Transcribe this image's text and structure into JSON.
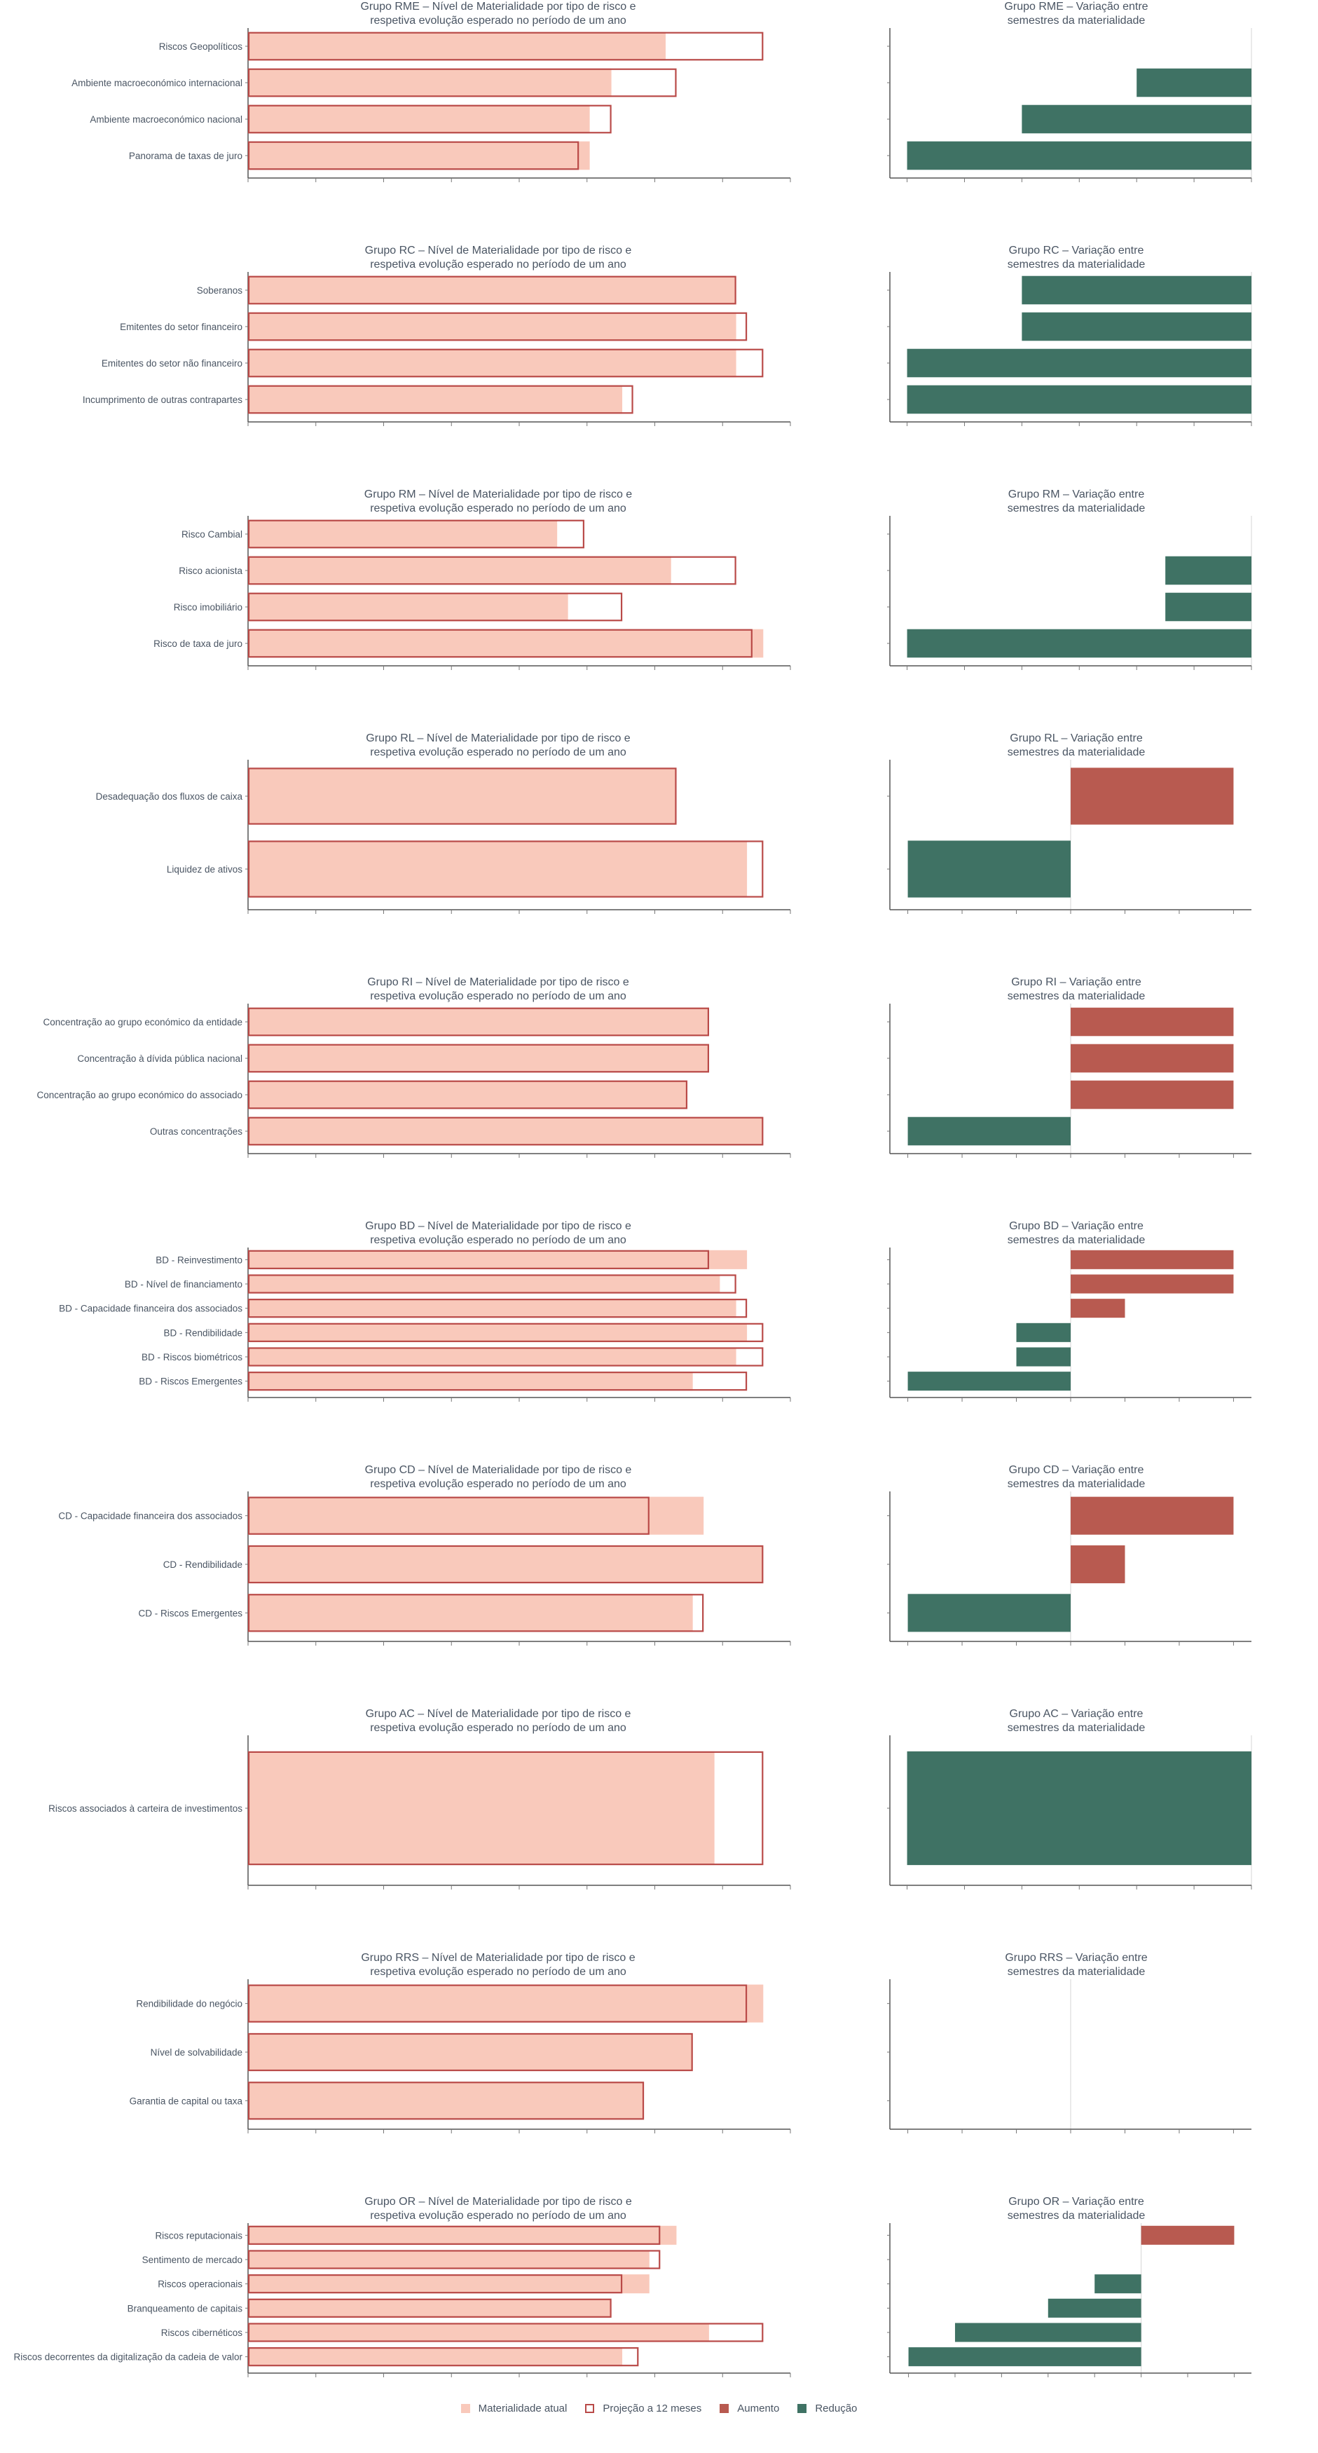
{
  "colors": {
    "current": "#f9c9bb",
    "projection": "#b94a48",
    "increase": "#b85a50",
    "decrease": "#3f7264",
    "text": "#4a5563"
  },
  "legend": {
    "current": "Materialidade atual",
    "projection": "Projeção a 12 meses",
    "increase": "Aumento",
    "decrease": "Redução"
  },
  "chart_data": [
    {
      "type": "bar",
      "title_lines": [
        "Grupo RME – Nível de Materialidade por tipo de risco e",
        "respetiva evolução esperado no período de um ano"
      ],
      "categories": [
        "Riscos Geopolíticos",
        "Ambiente macroeconómico internacional",
        "Ambiente macroeconómico nacional",
        "Panorama de taxas de juro"
      ],
      "series": [
        {
          "name": "Materialidade atual",
          "values": [
            77,
            67,
            63,
            63
          ]
        },
        {
          "name": "Projeção a 12 meses",
          "values": [
            95,
            79,
            67,
            61
          ]
        }
      ],
      "xlim": [
        0,
        100
      ],
      "variation": {
        "title_lines": [
          "Grupo RME – Variação entre",
          "semestres da materialidade"
        ],
        "values": [
          0,
          -2,
          -4,
          -6
        ],
        "xlim": [
          -6.3,
          0
        ]
      }
    },
    {
      "type": "bar",
      "title_lines": [
        "Grupo RC – Nível de Materialidade por tipo de risco e",
        "respetiva evolução esperado no período de um ano"
      ],
      "categories": [
        "Soberanos",
        "Emitentes do setor financeiro",
        "Emitentes do setor não financeiro",
        "Incumprimento de outras contrapartes"
      ],
      "series": [
        {
          "name": "Materialidade atual",
          "values": [
            90,
            90,
            90,
            69
          ]
        },
        {
          "name": "Projeção a 12 meses",
          "values": [
            90,
            92,
            95,
            71
          ]
        }
      ],
      "xlim": [
        0,
        100
      ],
      "variation": {
        "title_lines": [
          "Grupo RC – Variação entre",
          "semestres da materialidade"
        ],
        "values": [
          -4,
          -4,
          -6,
          -6
        ],
        "xlim": [
          -6.3,
          0
        ]
      }
    },
    {
      "type": "bar",
      "title_lines": [
        "Grupo RM – Nível de Materialidade por tipo de risco e",
        "respetiva evolução esperado no período de um ano"
      ],
      "categories": [
        "Risco Cambial",
        "Risco acionista",
        "Risco imobiliário",
        "Risco de taxa de juro"
      ],
      "series": [
        {
          "name": "Materialidade atual",
          "values": [
            57,
            78,
            59,
            95
          ]
        },
        {
          "name": "Projeção a 12 meses",
          "values": [
            62,
            90,
            69,
            93
          ]
        }
      ],
      "xlim": [
        0,
        100
      ],
      "variation": {
        "title_lines": [
          "Grupo RM – Variação entre",
          "semestres da materialidade"
        ],
        "values": [
          0,
          -1.5,
          -1.5,
          -6
        ],
        "xlim": [
          -6.3,
          0
        ]
      }
    },
    {
      "type": "bar",
      "title_lines": [
        "Grupo RL – Nível de Materialidade por tipo de risco e",
        "respetiva evolução esperado no período de um ano"
      ],
      "categories": [
        "Desadequação dos fluxos de caixa",
        "Liquidez de ativos"
      ],
      "series": [
        {
          "name": "Materialidade atual",
          "values": [
            79,
            92
          ]
        },
        {
          "name": "Projeção a 12 meses",
          "values": [
            79,
            95
          ]
        }
      ],
      "xlim": [
        0,
        100
      ],
      "variation": {
        "title_lines": [
          "Grupo RL – Variação entre",
          "semestres da materialidade"
        ],
        "values": [
          3,
          -3
        ],
        "xlim": [
          -3.33,
          3.33
        ]
      }
    },
    {
      "type": "bar",
      "title_lines": [
        "Grupo RI – Nível de Materialidade por tipo de risco e",
        "respetiva evolução esperado no período de um ano"
      ],
      "categories": [
        "Concentração ao grupo económico da entidade",
        "Concentração à dívida pública nacional",
        "Concentração ao grupo económico do associado",
        "Outras concentrações"
      ],
      "series": [
        {
          "name": "Materialidade atual",
          "values": [
            85,
            85,
            81,
            95
          ]
        },
        {
          "name": "Projeção a 12 meses",
          "values": [
            85,
            85,
            81,
            95
          ]
        }
      ],
      "xlim": [
        0,
        100
      ],
      "variation": {
        "title_lines": [
          "Grupo RI – Variação entre",
          "semestres da materialidade"
        ],
        "values": [
          3,
          3,
          3,
          -3
        ],
        "xlim": [
          -3.33,
          3.33
        ]
      }
    },
    {
      "type": "bar",
      "title_lines": [
        "Grupo BD – Nível de Materialidade por tipo de risco e",
        "respetiva evolução esperado no período de um ano"
      ],
      "categories": [
        "BD - Reinvestimento",
        "BD - Nível de financiamento",
        "BD - Capacidade financeira dos associados",
        "BD - Rendibilidade",
        "BD - Riscos biométricos",
        "BD - Riscos Emergentes"
      ],
      "series": [
        {
          "name": "Materialidade atual",
          "values": [
            92,
            87,
            90,
            92,
            90,
            82
          ]
        },
        {
          "name": "Projeção a 12 meses",
          "values": [
            85,
            90,
            92,
            95,
            95,
            92
          ]
        }
      ],
      "xlim": [
        0,
        100
      ],
      "variation": {
        "title_lines": [
          "Grupo BD – Variação entre",
          "semestres da materialidade"
        ],
        "values": [
          3,
          3,
          1,
          -1,
          -1,
          -3
        ],
        "xlim": [
          -3.33,
          3.33
        ]
      }
    },
    {
      "type": "bar",
      "title_lines": [
        "Grupo CD – Nível de Materialidade por tipo de risco e",
        "respetiva evolução esperado no período de um ano"
      ],
      "categories": [
        "CD - Capacidade financeira dos associados",
        "CD - Rendibilidade",
        "CD - Riscos Emergentes"
      ],
      "series": [
        {
          "name": "Materialidade atual",
          "values": [
            84,
            95,
            82
          ]
        },
        {
          "name": "Projeção a 12 meses",
          "values": [
            74,
            95,
            84
          ]
        }
      ],
      "xlim": [
        0,
        100
      ],
      "variation": {
        "title_lines": [
          "Grupo CD – Variação entre",
          "semestres da materialidade"
        ],
        "values": [
          3,
          1,
          -3
        ],
        "xlim": [
          -3.33,
          3.33
        ]
      }
    },
    {
      "type": "bar",
      "title_lines": [
        "Grupo AC – Nível de Materialidade por tipo de risco e",
        "respetiva evolução esperado no período de um ano"
      ],
      "categories": [
        "Riscos associados à carteira de investimentos"
      ],
      "series": [
        {
          "name": "Materialidade atual",
          "values": [
            86
          ]
        },
        {
          "name": "Projeção a 12 meses",
          "values": [
            95
          ]
        }
      ],
      "xlim": [
        0,
        100
      ],
      "variation": {
        "title_lines": [
          "Grupo AC – Variação entre",
          "semestres da materialidade"
        ],
        "values": [
          -6
        ],
        "xlim": [
          -6.3,
          0
        ]
      }
    },
    {
      "type": "bar",
      "title_lines": [
        "Grupo RRS – Nível de Materialidade por tipo de risco e",
        "respetiva evolução esperado no período de um ano"
      ],
      "categories": [
        "Rendibilidade do negócio",
        "Nível de solvabilidade",
        "Garantia de capital ou taxa"
      ],
      "series": [
        {
          "name": "Materialidade atual",
          "values": [
            95,
            82,
            73
          ]
        },
        {
          "name": "Projeção a 12 meses",
          "values": [
            92,
            82,
            73
          ]
        }
      ],
      "xlim": [
        0,
        100
      ],
      "variation": {
        "title_lines": [
          "Grupo RRS – Variação entre",
          "semestres da materialidade"
        ],
        "values": [
          0,
          0,
          0
        ],
        "xlim": [
          -3.33,
          3.33
        ]
      }
    },
    {
      "type": "bar",
      "title_lines": [
        "Grupo OR – Nível de Materialidade por tipo de risco e",
        "respetiva evolução esperado no período de um ano"
      ],
      "categories": [
        "Riscos reputacionais",
        "Sentimento de mercado",
        "Riscos operacionais",
        "Branqueamento de capitais",
        "Riscos cibernéticos",
        "Riscos decorrentes da digitalização da cadeia de valor"
      ],
      "series": [
        {
          "name": "Materialidade atual",
          "values": [
            79,
            74,
            74,
            67,
            85,
            69
          ]
        },
        {
          "name": "Projeção a 12 meses",
          "values": [
            76,
            76,
            69,
            67,
            95,
            72
          ]
        }
      ],
      "xlim": [
        0,
        100
      ],
      "variation": {
        "title_lines": [
          "Grupo OR – Variação entre",
          "semestres da materialidade"
        ],
        "values": [
          2,
          0,
          -1,
          -2,
          -4,
          -5
        ],
        "xlim": [
          -5.4,
          2.37
        ]
      }
    }
  ]
}
